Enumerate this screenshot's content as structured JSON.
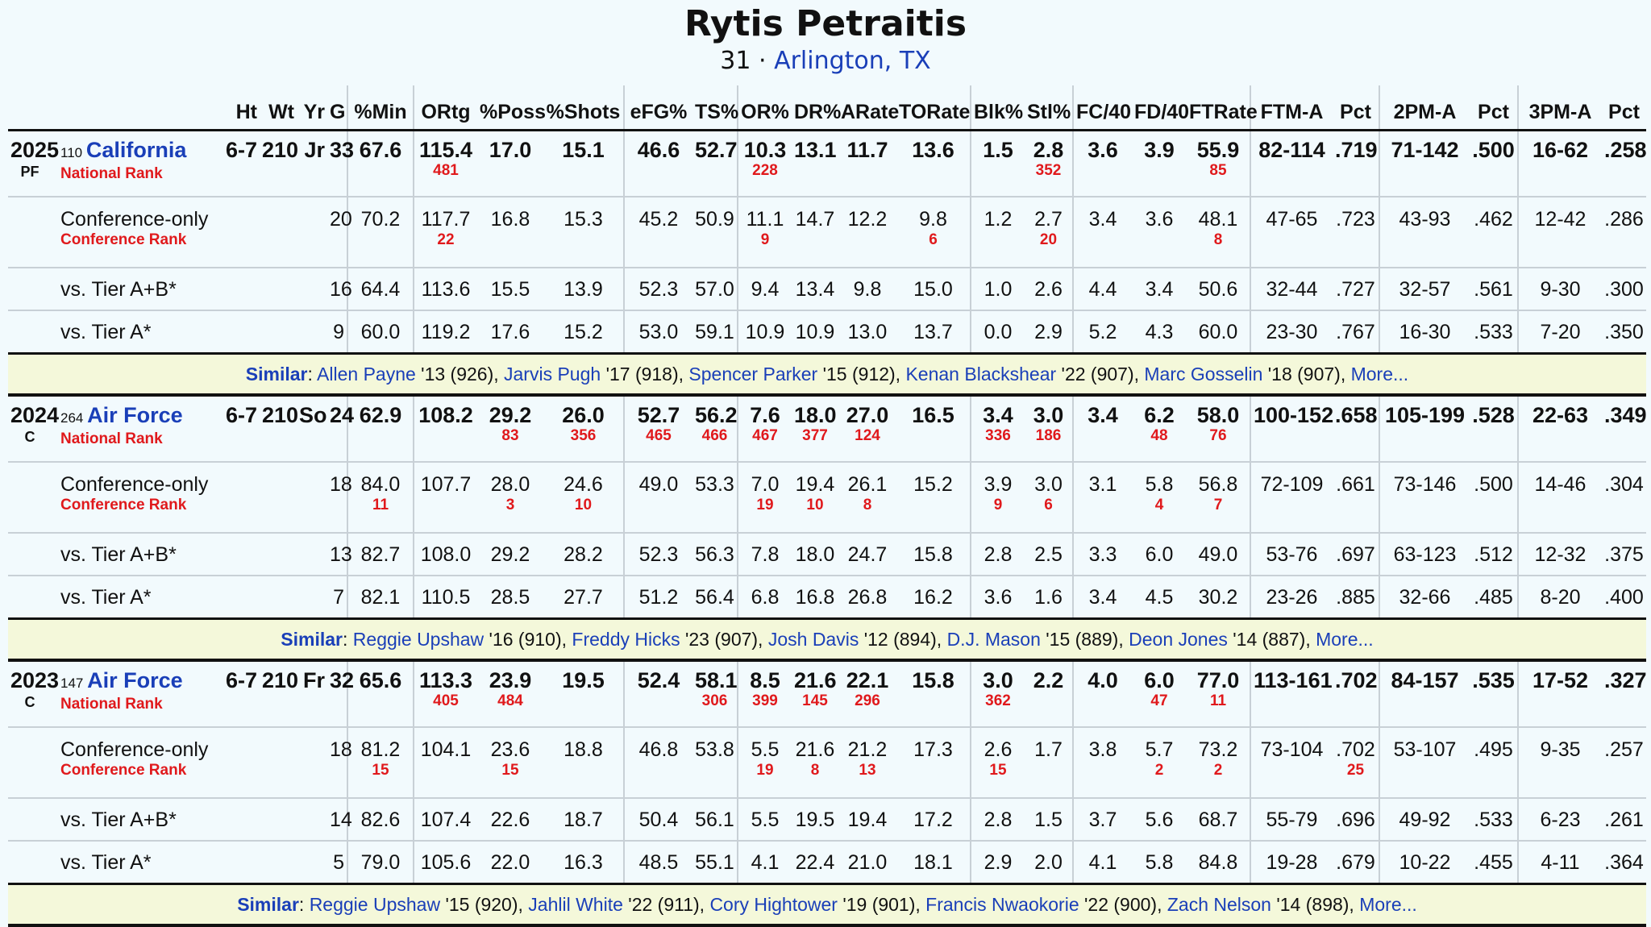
{
  "player": {
    "name": "Rytis Petraitis",
    "number": "31 ·",
    "hometown": "Arlington, TX"
  },
  "columns": [
    "Ht",
    "Wt",
    "Yr",
    "G",
    "%Min",
    "ORtg",
    "%Poss",
    "%Shots",
    "eFG%",
    "TS%",
    "OR%",
    "DR%",
    "ARate",
    "TORate",
    "Blk%",
    "Stl%",
    "FC/40",
    "FD/40",
    "FTRate",
    "FTM-A",
    "Pct",
    "2PM-A",
    "Pct",
    "3PM-A",
    "Pct"
  ],
  "labels": {
    "national_rank": "National Rank",
    "conference_only": "Conference-only",
    "conference_rank": "Conference Rank",
    "tier_ab": "vs. Tier A+B*",
    "tier_a": "vs. Tier A*",
    "similar": "Similar",
    "more": "More..."
  },
  "seasons": [
    {
      "year": "2025",
      "pos": "PF",
      "team_rank": "110",
      "team": "California",
      "ht": "6-7",
      "wt": "210",
      "cls": "Jr",
      "g": "33",
      "main": [
        "67.6",
        "115.4",
        "17.0",
        "15.1",
        "46.6",
        "52.7",
        "10.3",
        "13.1",
        "11.7",
        "13.6",
        "1.5",
        "2.8",
        "3.6",
        "3.9",
        "55.9",
        "82-114",
        ".719",
        "71-142",
        ".500",
        "16-62",
        ".258"
      ],
      "nat_rank": [
        "",
        "481",
        "",
        "",
        "",
        "",
        "228",
        "",
        "",
        "",
        "",
        "352",
        "",
        "",
        "85",
        "",
        "",
        "",
        "",
        "",
        ""
      ],
      "conf": {
        "g": "20",
        "vals": [
          "70.2",
          "117.7",
          "16.8",
          "15.3",
          "45.2",
          "50.9",
          "11.1",
          "14.7",
          "12.2",
          "9.8",
          "1.2",
          "2.7",
          "3.4",
          "3.6",
          "48.1",
          "47-65",
          ".723",
          "43-93",
          ".462",
          "12-42",
          ".286"
        ]
      },
      "conf_rank": [
        "",
        "22",
        "",
        "",
        "",
        "",
        "9",
        "",
        "",
        "6",
        "",
        "20",
        "",
        "",
        "8",
        "",
        "",
        "",
        "",
        "",
        ""
      ],
      "tier_ab": {
        "g": "16",
        "vals": [
          "64.4",
          "113.6",
          "15.5",
          "13.9",
          "52.3",
          "57.0",
          "9.4",
          "13.4",
          "9.8",
          "15.0",
          "1.0",
          "2.6",
          "4.4",
          "3.4",
          "50.6",
          "32-44",
          ".727",
          "32-57",
          ".561",
          "9-30",
          ".300"
        ]
      },
      "tier_a": {
        "g": "9",
        "vals": [
          "60.0",
          "119.2",
          "17.6",
          "15.2",
          "53.0",
          "59.1",
          "10.9",
          "10.9",
          "13.0",
          "13.7",
          "0.0",
          "2.9",
          "5.2",
          "4.3",
          "60.0",
          "23-30",
          ".767",
          "16-30",
          ".533",
          "7-20",
          ".350"
        ]
      },
      "similar": [
        {
          "name": "Allen Payne",
          "yr": "'13",
          "score": "(926),"
        },
        {
          "name": "Jarvis Pugh",
          "yr": "'17",
          "score": "(918),"
        },
        {
          "name": "Spencer Parker",
          "yr": "'15",
          "score": "(912),"
        },
        {
          "name": "Kenan Blackshear",
          "yr": "'22",
          "score": "(907),"
        },
        {
          "name": "Marc Gosselin",
          "yr": "'18",
          "score": "(907),"
        }
      ]
    },
    {
      "year": "2024",
      "pos": "C",
      "team_rank": "264",
      "team": "Air Force",
      "ht": "6-7",
      "wt": "210",
      "cls": "So",
      "g": "24",
      "main": [
        "62.9",
        "108.2",
        "29.2",
        "26.0",
        "52.7",
        "56.2",
        "7.6",
        "18.0",
        "27.0",
        "16.5",
        "3.4",
        "3.0",
        "3.4",
        "6.2",
        "58.0",
        "100-152",
        ".658",
        "105-199",
        ".528",
        "22-63",
        ".349"
      ],
      "nat_rank": [
        "",
        "",
        "83",
        "356",
        "465",
        "466",
        "467",
        "377",
        "124",
        "",
        "336",
        "186",
        "",
        "48",
        "76",
        "",
        "",
        "",
        "",
        "",
        ""
      ],
      "conf": {
        "g": "18",
        "vals": [
          "84.0",
          "107.7",
          "28.0",
          "24.6",
          "49.0",
          "53.3",
          "7.0",
          "19.4",
          "26.1",
          "15.2",
          "3.9",
          "3.0",
          "3.1",
          "5.8",
          "56.8",
          "72-109",
          ".661",
          "73-146",
          ".500",
          "14-46",
          ".304"
        ]
      },
      "conf_rank": [
        "11",
        "",
        "3",
        "10",
        "",
        "",
        "19",
        "10",
        "8",
        "",
        "9",
        "6",
        "",
        "4",
        "7",
        "",
        "",
        "",
        "",
        "",
        ""
      ],
      "tier_ab": {
        "g": "13",
        "vals": [
          "82.7",
          "108.0",
          "29.2",
          "28.2",
          "52.3",
          "56.3",
          "7.8",
          "18.0",
          "24.7",
          "15.8",
          "2.8",
          "2.5",
          "3.3",
          "6.0",
          "49.0",
          "53-76",
          ".697",
          "63-123",
          ".512",
          "12-32",
          ".375"
        ]
      },
      "tier_a": {
        "g": "7",
        "vals": [
          "82.1",
          "110.5",
          "28.5",
          "27.7",
          "51.2",
          "56.4",
          "6.8",
          "16.8",
          "26.8",
          "16.2",
          "3.6",
          "1.6",
          "3.4",
          "4.5",
          "30.2",
          "23-26",
          ".885",
          "32-66",
          ".485",
          "8-20",
          ".400"
        ]
      },
      "similar": [
        {
          "name": "Reggie Upshaw",
          "yr": "'16",
          "score": "(910),"
        },
        {
          "name": "Freddy Hicks",
          "yr": "'23",
          "score": "(907),"
        },
        {
          "name": "Josh Davis",
          "yr": "'12",
          "score": "(894),"
        },
        {
          "name": "D.J. Mason",
          "yr": "'15",
          "score": "(889),"
        },
        {
          "name": "Deon Jones",
          "yr": "'14",
          "score": "(887),"
        }
      ]
    },
    {
      "year": "2023",
      "pos": "C",
      "team_rank": "147",
      "team": "Air Force",
      "ht": "6-7",
      "wt": "210",
      "cls": "Fr",
      "g": "32",
      "main": [
        "65.6",
        "113.3",
        "23.9",
        "19.5",
        "52.4",
        "58.1",
        "8.5",
        "21.6",
        "22.1",
        "15.8",
        "3.0",
        "2.2",
        "4.0",
        "6.0",
        "77.0",
        "113-161",
        ".702",
        "84-157",
        ".535",
        "17-52",
        ".327"
      ],
      "nat_rank": [
        "",
        "405",
        "484",
        "",
        "",
        "306",
        "399",
        "145",
        "296",
        "",
        "362",
        "",
        "",
        "47",
        "11",
        "",
        "",
        "",
        "",
        "",
        ""
      ],
      "conf": {
        "g": "18",
        "vals": [
          "81.2",
          "104.1",
          "23.6",
          "18.8",
          "46.8",
          "53.8",
          "5.5",
          "21.6",
          "21.2",
          "17.3",
          "2.6",
          "1.7",
          "3.8",
          "5.7",
          "73.2",
          "73-104",
          ".702",
          "53-107",
          ".495",
          "9-35",
          ".257"
        ]
      },
      "conf_rank": [
        "15",
        "",
        "15",
        "",
        "",
        "",
        "19",
        "8",
        "13",
        "",
        "15",
        "",
        "",
        "2",
        "2",
        "",
        "25",
        "",
        "",
        "",
        ""
      ],
      "tier_ab": {
        "g": "14",
        "vals": [
          "82.6",
          "107.4",
          "22.6",
          "18.7",
          "50.4",
          "56.1",
          "5.5",
          "19.5",
          "19.4",
          "17.2",
          "2.8",
          "1.5",
          "3.7",
          "5.6",
          "68.7",
          "55-79",
          ".696",
          "49-92",
          ".533",
          "6-23",
          ".261"
        ]
      },
      "tier_a": {
        "g": "5",
        "vals": [
          "79.0",
          "105.6",
          "22.0",
          "16.3",
          "48.5",
          "55.1",
          "4.1",
          "22.4",
          "21.0",
          "18.1",
          "2.9",
          "2.0",
          "4.1",
          "5.8",
          "84.8",
          "19-28",
          ".679",
          "10-22",
          ".455",
          "4-11",
          ".364"
        ]
      },
      "similar": [
        {
          "name": "Reggie Upshaw",
          "yr": "'15",
          "score": "(920),"
        },
        {
          "name": "Jahlil White",
          "yr": "'22",
          "score": "(911),"
        },
        {
          "name": "Cory Hightower",
          "yr": "'19",
          "score": "(901),"
        },
        {
          "name": "Francis Nwaokorie",
          "yr": "'22",
          "score": "(900),"
        },
        {
          "name": "Zach Nelson",
          "yr": "'14",
          "score": "(898),"
        }
      ]
    }
  ]
}
